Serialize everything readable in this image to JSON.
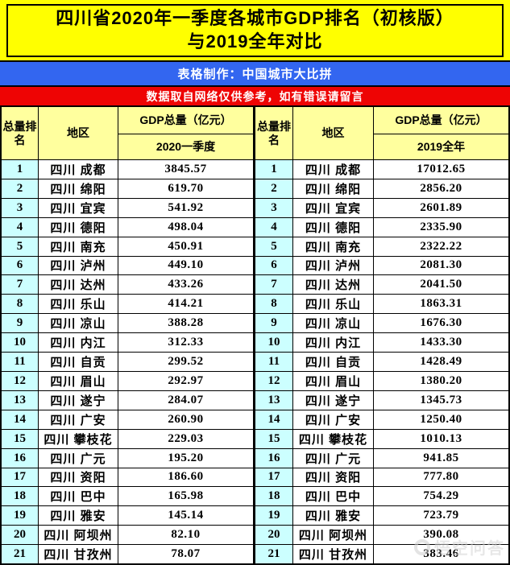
{
  "title": {
    "line1": "四川省2020年一季度各城市GDP排名（初核版）",
    "line2": "与2019全年对比"
  },
  "credit_bar": {
    "text": "表格制作：中国城市大比拼"
  },
  "notice_bar": {
    "text": "数据取自网络仅供参考，如有错误请留言"
  },
  "watermark": {
    "text": "悟空问答"
  },
  "colors": {
    "title_bg": "#ffff00",
    "credit_bg": "#3366f0",
    "notice_bg": "#ee0404",
    "header_bg": "#ffff9e",
    "rank_bg": "#ccffff",
    "border": "#000000"
  },
  "table": {
    "left": {
      "rank_header": "总量排名",
      "region_header": "地区",
      "gdp_header": "GDP总量（亿元）",
      "period": "2020一季度",
      "rows": [
        {
          "rank": "1",
          "region": "四川  成都",
          "value": "3845.57"
        },
        {
          "rank": "2",
          "region": "四川  绵阳",
          "value": "619.70"
        },
        {
          "rank": "3",
          "region": "四川  宜宾",
          "value": "541.92"
        },
        {
          "rank": "4",
          "region": "四川  德阳",
          "value": "498.04"
        },
        {
          "rank": "5",
          "region": "四川  南充",
          "value": "450.91"
        },
        {
          "rank": "6",
          "region": "四川  泸州",
          "value": "449.10"
        },
        {
          "rank": "7",
          "region": "四川  达州",
          "value": "433.26"
        },
        {
          "rank": "8",
          "region": "四川  乐山",
          "value": "414.21"
        },
        {
          "rank": "9",
          "region": "四川  凉山",
          "value": "388.28"
        },
        {
          "rank": "10",
          "region": "四川  内江",
          "value": "312.33"
        },
        {
          "rank": "11",
          "region": "四川  自贡",
          "value": "299.52"
        },
        {
          "rank": "12",
          "region": "四川  眉山",
          "value": "292.97"
        },
        {
          "rank": "13",
          "region": "四川  遂宁",
          "value": "284.07"
        },
        {
          "rank": "14",
          "region": "四川  广安",
          "value": "260.90"
        },
        {
          "rank": "15",
          "region": "四川  攀枝花",
          "value": "229.03"
        },
        {
          "rank": "16",
          "region": "四川  广元",
          "value": "195.20"
        },
        {
          "rank": "17",
          "region": "四川  资阳",
          "value": "186.60"
        },
        {
          "rank": "18",
          "region": "四川  巴中",
          "value": "165.98"
        },
        {
          "rank": "19",
          "region": "四川  雅安",
          "value": "145.14"
        },
        {
          "rank": "20",
          "region": "四川  阿坝州",
          "value": "82.10"
        },
        {
          "rank": "21",
          "region": "四川  甘孜州",
          "value": "78.07"
        }
      ]
    },
    "right": {
      "rank_header": "总量排名",
      "region_header": "地区",
      "gdp_header": "GDP总量（亿元）",
      "period": "2019全年",
      "rows": [
        {
          "rank": "1",
          "region": "四川  成都",
          "value": "17012.65"
        },
        {
          "rank": "2",
          "region": "四川  绵阳",
          "value": "2856.20"
        },
        {
          "rank": "3",
          "region": "四川  宜宾",
          "value": "2601.89"
        },
        {
          "rank": "4",
          "region": "四川  德阳",
          "value": "2335.90"
        },
        {
          "rank": "5",
          "region": "四川  南充",
          "value": "2322.22"
        },
        {
          "rank": "6",
          "region": "四川  泸州",
          "value": "2081.30"
        },
        {
          "rank": "7",
          "region": "四川  达州",
          "value": "2041.50"
        },
        {
          "rank": "8",
          "region": "四川  乐山",
          "value": "1863.31"
        },
        {
          "rank": "9",
          "region": "四川  凉山",
          "value": "1676.30"
        },
        {
          "rank": "10",
          "region": "四川  内江",
          "value": "1433.30"
        },
        {
          "rank": "11",
          "region": "四川  自贡",
          "value": "1428.49"
        },
        {
          "rank": "12",
          "region": "四川  眉山",
          "value": "1380.20"
        },
        {
          "rank": "13",
          "region": "四川  遂宁",
          "value": "1345.73"
        },
        {
          "rank": "14",
          "region": "四川  广安",
          "value": "1250.40"
        },
        {
          "rank": "15",
          "region": "四川  攀枝花",
          "value": "1010.13"
        },
        {
          "rank": "16",
          "region": "四川  广元",
          "value": "941.85"
        },
        {
          "rank": "17",
          "region": "四川  资阳",
          "value": "777.80"
        },
        {
          "rank": "18",
          "region": "四川  巴中",
          "value": "754.29"
        },
        {
          "rank": "19",
          "region": "四川  雅安",
          "value": "723.79"
        },
        {
          "rank": "20",
          "region": "四川  阿坝州",
          "value": "390.08"
        },
        {
          "rank": "21",
          "region": "四川  甘孜州",
          "value": "383.46"
        }
      ]
    }
  },
  "chart_data": {
    "type": "table",
    "title": "四川省2020年一季度各城市GDP排名（初核版）与2019全年对比",
    "categories": [
      "成都",
      "绵阳",
      "宜宾",
      "德阳",
      "南充",
      "泸州",
      "达州",
      "乐山",
      "凉山",
      "内江",
      "自贡",
      "眉山",
      "遂宁",
      "广安",
      "攀枝花",
      "广元",
      "资阳",
      "巴中",
      "雅安",
      "阿坝州",
      "甘孜州"
    ],
    "series": [
      {
        "name": "2020一季度 GDP总量（亿元）",
        "values": [
          3845.57,
          619.7,
          541.92,
          498.04,
          450.91,
          449.1,
          433.26,
          414.21,
          388.28,
          312.33,
          299.52,
          292.97,
          284.07,
          260.9,
          229.03,
          195.2,
          186.6,
          165.98,
          145.14,
          82.1,
          78.07
        ]
      },
      {
        "name": "2019全年 GDP总量（亿元）",
        "values": [
          17012.65,
          2856.2,
          2601.89,
          2335.9,
          2322.22,
          2081.3,
          2041.5,
          1863.31,
          1676.3,
          1433.3,
          1428.49,
          1380.2,
          1345.73,
          1250.4,
          1010.13,
          941.85,
          777.8,
          754.29,
          723.79,
          390.08,
          383.46
        ]
      }
    ]
  }
}
